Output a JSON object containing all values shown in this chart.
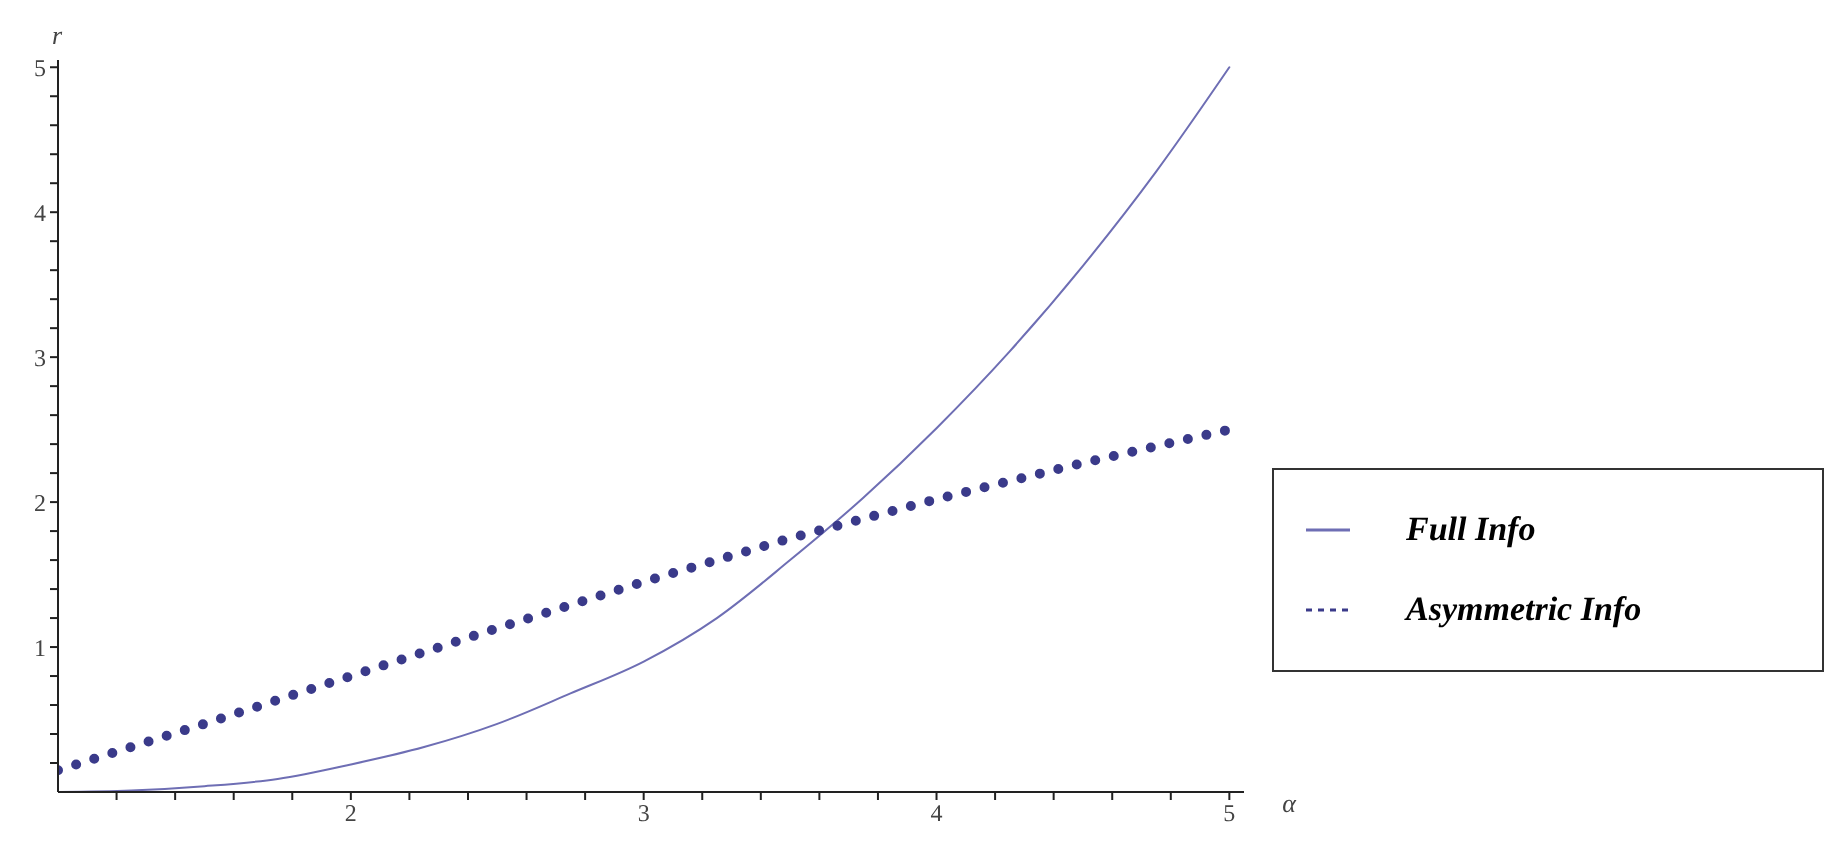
{
  "chart_data": {
    "type": "line",
    "xlabel": "α",
    "ylabel": "r",
    "xlim": [
      1,
      5.05
    ],
    "ylim": [
      0,
      5.05
    ],
    "xticks": [
      {
        "value": 1.2,
        "label": null
      },
      {
        "value": 1.4,
        "label": null
      },
      {
        "value": 1.6,
        "label": null
      },
      {
        "value": 1.8,
        "label": null
      },
      2,
      {
        "value": 2.2,
        "label": null
      },
      {
        "value": 2.4,
        "label": null
      },
      {
        "value": 2.6,
        "label": null
      },
      {
        "value": 2.8,
        "label": null
      },
      3,
      {
        "value": 3.2,
        "label": null
      },
      {
        "value": 3.4,
        "label": null
      },
      {
        "value": 3.6,
        "label": null
      },
      {
        "value": 3.8,
        "label": null
      },
      4,
      {
        "value": 4.2,
        "label": null
      },
      {
        "value": 4.4,
        "label": null
      },
      {
        "value": 4.6,
        "label": null
      },
      {
        "value": 4.8,
        "label": null
      },
      5
    ],
    "yticks": [
      {
        "value": 0.2,
        "label": null
      },
      {
        "value": 0.4,
        "label": null
      },
      {
        "value": 0.6,
        "label": null
      },
      {
        "value": 0.8,
        "label": null
      },
      1,
      {
        "value": 1.2,
        "label": null
      },
      {
        "value": 1.4,
        "label": null
      },
      {
        "value": 1.6,
        "label": null
      },
      {
        "value": 1.8,
        "label": null
      },
      2,
      {
        "value": 2.2,
        "label": null
      },
      {
        "value": 2.4,
        "label": null
      },
      {
        "value": 2.6,
        "label": null
      },
      {
        "value": 2.8,
        "label": null
      },
      3,
      {
        "value": 3.2,
        "label": null
      },
      {
        "value": 3.4,
        "label": null
      },
      {
        "value": 3.6,
        "label": null
      },
      {
        "value": 3.8,
        "label": null
      },
      4,
      {
        "value": 4.2,
        "label": null
      },
      {
        "value": 4.4,
        "label": null
      },
      {
        "value": 4.6,
        "label": null
      },
      {
        "value": 4.8,
        "label": null
      },
      5
    ],
    "legend": "right",
    "grid": false,
    "marker": "none",
    "series": [
      {
        "name": "Full Info",
        "color": "#6e6eb4",
        "line_style": "solid",
        "x": [
          1,
          1.25,
          1.5,
          1.75,
          2,
          2.25,
          2.5,
          2.75,
          3,
          3.25,
          3.5,
          3.75,
          4,
          4.25,
          4.5,
          4.75,
          5
        ],
        "values": [
          0,
          0.01,
          0.04,
          0.09,
          0.19,
          0.31,
          0.47,
          0.68,
          0.9,
          1.2,
          1.6,
          2.03,
          2.51,
          3.04,
          3.63,
          4.28,
          5
        ]
      },
      {
        "name": "Asymmetric Info",
        "color": "#3a3a8a",
        "line_style": "dotted",
        "x": [
          1,
          1.5,
          2,
          2.5,
          3,
          3.5,
          4,
          4.5,
          5
        ],
        "values": [
          0.15,
          0.47,
          0.8,
          1.13,
          1.45,
          1.75,
          2.02,
          2.27,
          2.5
        ]
      }
    ]
  }
}
